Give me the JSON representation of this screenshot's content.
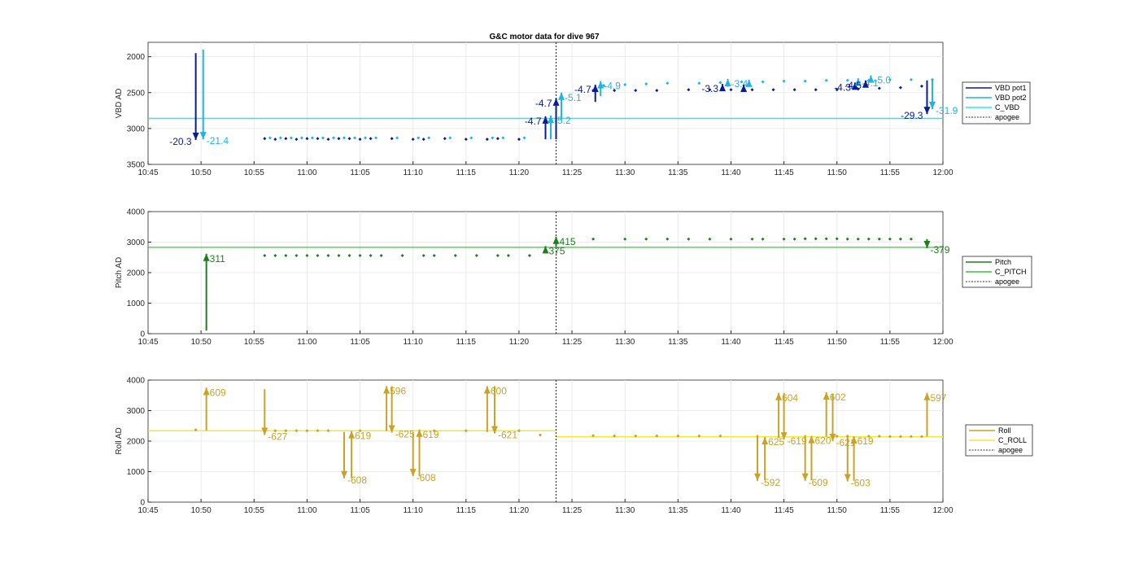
{
  "title": "G&C motor data for dive 967",
  "x_tick_labels": [
    "10:45",
    "10:50",
    "10:55",
    "11:00",
    "11:05",
    "11:10",
    "11:15",
    "11:20",
    "11:25",
    "11:30",
    "11:35",
    "11:40",
    "11:45",
    "11:50",
    "11:55",
    "12:00"
  ],
  "chart_data": [
    {
      "type": "scatter",
      "ylabel": "VBD AD",
      "ylim": [
        3500,
        1800
      ],
      "y_reversed": true,
      "yticks": [
        2000,
        2500,
        3000,
        3500
      ],
      "grid": true,
      "legend_position": "right",
      "legend": [
        "VBD pot1",
        "VBD pot2",
        "C_VBD",
        "apogee"
      ],
      "colors": {
        "pot1": "#0a1a9c",
        "pot2": "#1fb4e6",
        "c_vbd": "#2fe6e6",
        "apogee": "#333333"
      },
      "c_vbd_value": 2860,
      "apogee_time": "11:23.5",
      "pot1_points": [
        [
          56,
          3140
        ],
        [
          57,
          3150
        ],
        [
          58,
          3140
        ],
        [
          59,
          3150
        ],
        [
          60,
          3140
        ],
        [
          61,
          3140
        ],
        [
          62,
          3150
        ],
        [
          63,
          3140
        ],
        [
          64,
          3140
        ],
        [
          65,
          3150
        ],
        [
          66,
          3140
        ],
        [
          68,
          3140
        ],
        [
          70,
          3150
        ],
        [
          71,
          3150
        ],
        [
          73,
          3140
        ],
        [
          75,
          3150
        ],
        [
          77,
          3150
        ],
        [
          78,
          3140
        ],
        [
          80,
          3150
        ],
        [
          87,
          2470
        ],
        [
          89,
          2470
        ],
        [
          91,
          2470
        ],
        [
          93,
          2470
        ],
        [
          96,
          2460
        ],
        [
          98,
          2460
        ],
        [
          100,
          2460
        ],
        [
          102,
          2460
        ],
        [
          104,
          2460
        ],
        [
          106,
          2460
        ],
        [
          108,
          2460
        ],
        [
          110,
          2460
        ],
        [
          112,
          2450
        ],
        [
          114,
          2440
        ],
        [
          116,
          2430
        ],
        [
          118,
          2410
        ]
      ],
      "pot2_points": [
        [
          56.5,
          3130
        ],
        [
          57.5,
          3130
        ],
        [
          58.5,
          3130
        ],
        [
          59.5,
          3130
        ],
        [
          60.5,
          3130
        ],
        [
          61.5,
          3130
        ],
        [
          62.5,
          3130
        ],
        [
          63.5,
          3130
        ],
        [
          64.5,
          3130
        ],
        [
          65.5,
          3130
        ],
        [
          66.5,
          3130
        ],
        [
          68.5,
          3130
        ],
        [
          70.5,
          3130
        ],
        [
          71.5,
          3130
        ],
        [
          73.5,
          3130
        ],
        [
          75.5,
          3130
        ],
        [
          77.5,
          3130
        ],
        [
          78.5,
          3130
        ],
        [
          80.5,
          3130
        ],
        [
          88,
          2400
        ],
        [
          90,
          2390
        ],
        [
          92,
          2380
        ],
        [
          94,
          2370
        ],
        [
          97,
          2370
        ],
        [
          99,
          2360
        ],
        [
          101,
          2350
        ],
        [
          103,
          2350
        ],
        [
          105,
          2340
        ],
        [
          107,
          2340
        ],
        [
          109,
          2330
        ],
        [
          111,
          2330
        ],
        [
          113,
          2330
        ],
        [
          115,
          2320
        ],
        [
          117,
          2320
        ],
        [
          119,
          2320
        ]
      ],
      "arrows": [
        {
          "series": "pot1",
          "t": 49.5,
          "y0": 1950,
          "y1": 3160,
          "label": "-20.3",
          "label_side": "left"
        },
        {
          "series": "pot2",
          "t": 50.2,
          "y0": 1900,
          "y1": 3150,
          "label": "-21.4",
          "label_side": "right"
        },
        {
          "series": "pot1",
          "t": 82.5,
          "y0": 3150,
          "y1": 2830,
          "label": "-4.7",
          "label_side": "left"
        },
        {
          "series": "pot2",
          "t": 83.0,
          "y0": 3150,
          "y1": 2820,
          "label": "-5.2",
          "label_side": "right"
        },
        {
          "series": "pot1",
          "t": 83.5,
          "y0": 3150,
          "y1": 2580,
          "label": "-4.7",
          "label_side": "left"
        },
        {
          "series": "pot2",
          "t": 84.0,
          "y0": 2880,
          "y1": 2500,
          "label": "-5.1",
          "label_side": "right"
        },
        {
          "series": "pot1",
          "t": 87.2,
          "y0": 2630,
          "y1": 2390,
          "label": "-4.7",
          "label_side": "left"
        },
        {
          "series": "pot2",
          "t": 87.7,
          "y0": 2550,
          "y1": 2340,
          "label": "-4.9",
          "label_side": "right"
        },
        {
          "series": "pot1",
          "t": 99.2,
          "y0": 2460,
          "y1": 2380,
          "label": "-3.3",
          "label_side": "left"
        },
        {
          "series": "pot2",
          "t": 99.7,
          "y0": 2420,
          "y1": 2310,
          "label": "-3.4",
          "label_side": "right"
        },
        {
          "series": "pot1",
          "t": 101.2,
          "y0": 2460,
          "y1": 2390,
          "label": "",
          "label_side": "left"
        },
        {
          "series": "pot2",
          "t": 101.7,
          "y0": 2410,
          "y1": 2320,
          "label": "",
          "label_side": "right"
        },
        {
          "series": "pot1",
          "t": 111.7,
          "y0": 2440,
          "y1": 2360,
          "label": "-4.3",
          "label_side": "left"
        },
        {
          "series": "pot2",
          "t": 112.0,
          "y0": 2380,
          "y1": 2300,
          "label": "-4.1",
          "label_side": "right"
        },
        {
          "series": "pot1",
          "t": 112.7,
          "y0": 2420,
          "y1": 2330,
          "label": "-4.5",
          "label_side": "left"
        },
        {
          "series": "pot2",
          "t": 113.2,
          "y0": 2360,
          "y1": 2260,
          "label": "-5.0",
          "label_side": "right"
        },
        {
          "series": "pot1",
          "t": 118.5,
          "y0": 2330,
          "y1": 2800,
          "label": "-29.3",
          "label_side": "left"
        },
        {
          "series": "pot2",
          "t": 119.0,
          "y0": 2320,
          "y1": 2730,
          "label": "-31.9",
          "label_side": "right"
        }
      ]
    },
    {
      "type": "scatter",
      "ylabel": "Pitch AD",
      "ylim": [
        0,
        4000
      ],
      "yticks": [
        0,
        1000,
        2000,
        3000,
        4000
      ],
      "grid": true,
      "legend_position": "right",
      "legend": [
        "Pitch",
        "C_PITCH",
        "apogee"
      ],
      "colors": {
        "pitch": "#1e7e1e",
        "c_pitch": "#35cc35",
        "apogee": "#333333"
      },
      "c_pitch_value": 2830,
      "apogee_time": "11:23.5",
      "points": [
        [
          56,
          2560
        ],
        [
          57,
          2560
        ],
        [
          58,
          2560
        ],
        [
          59,
          2560
        ],
        [
          60,
          2560
        ],
        [
          61,
          2560
        ],
        [
          62,
          2560
        ],
        [
          63,
          2560
        ],
        [
          64,
          2560
        ],
        [
          65,
          2560
        ],
        [
          66,
          2560
        ],
        [
          67,
          2560
        ],
        [
          69,
          2560
        ],
        [
          71,
          2560
        ],
        [
          72,
          2560
        ],
        [
          74,
          2560
        ],
        [
          76,
          2560
        ],
        [
          78,
          2560
        ],
        [
          79,
          2560
        ],
        [
          81,
          2560
        ],
        [
          87,
          3100
        ],
        [
          90,
          3100
        ],
        [
          92,
          3100
        ],
        [
          94,
          3100
        ],
        [
          96,
          3100
        ],
        [
          98,
          3100
        ],
        [
          100,
          3100
        ],
        [
          102,
          3100
        ],
        [
          103,
          3100
        ],
        [
          105,
          3100
        ],
        [
          106,
          3100
        ],
        [
          107,
          3110
        ],
        [
          108,
          3110
        ],
        [
          109,
          3110
        ],
        [
          110,
          3110
        ],
        [
          111,
          3100
        ],
        [
          112,
          3100
        ],
        [
          113,
          3100
        ],
        [
          114,
          3100
        ],
        [
          115,
          3100
        ],
        [
          116,
          3100
        ],
        [
          117,
          3100
        ]
      ],
      "arrows": [
        {
          "t": 50.5,
          "y0": 100,
          "y1": 2620,
          "label": "311",
          "label_side": "right"
        },
        {
          "t": 82.5,
          "y0": 2630,
          "y1": 2870,
          "label": "375",
          "label_side": "right"
        },
        {
          "t": 83.5,
          "y0": 2850,
          "y1": 3180,
          "label": "415",
          "label_side": "right"
        },
        {
          "t": 118.5,
          "y0": 3100,
          "y1": 2800,
          "label": "-379",
          "label_side": "right"
        }
      ]
    },
    {
      "type": "scatter",
      "ylabel": "Roll AD",
      "ylim": [
        0,
        4000
      ],
      "yticks": [
        0,
        1000,
        2000,
        3000,
        4000
      ],
      "grid": true,
      "legend_position": "right",
      "legend": [
        "Roll",
        "C_ROLL",
        "apogee"
      ],
      "colors": {
        "roll": "#c9a227",
        "c_roll": "#f2e83a",
        "apogee": "#333333"
      },
      "c_roll_segments": [
        {
          "t0": 45,
          "t1": 83.5,
          "y": 2340
        },
        {
          "t0": 83.5,
          "t1": 120,
          "y": 2140
        }
      ],
      "apogee_time": "11:23.5",
      "points": [
        [
          49.5,
          2370
        ],
        [
          57,
          2340
        ],
        [
          58,
          2340
        ],
        [
          59,
          2340
        ],
        [
          60,
          2340
        ],
        [
          61,
          2340
        ],
        [
          62,
          2340
        ],
        [
          65,
          2340
        ],
        [
          72,
          2340
        ],
        [
          75,
          2340
        ],
        [
          80,
          2340
        ],
        [
          82,
          2200
        ],
        [
          87,
          2180
        ],
        [
          89,
          2170
        ],
        [
          91,
          2170
        ],
        [
          93,
          2170
        ],
        [
          95,
          2170
        ],
        [
          97,
          2170
        ],
        [
          99,
          2170
        ],
        [
          110,
          2160
        ],
        [
          111,
          2160
        ],
        [
          113,
          2160
        ],
        [
          114,
          2160
        ],
        [
          115,
          2150
        ],
        [
          116,
          2150
        ],
        [
          117,
          2150
        ],
        [
          118,
          2150
        ]
      ],
      "arrows": [
        {
          "t": 50.5,
          "y0": 2350,
          "y1": 3750,
          "label": "609",
          "label_side": "right"
        },
        {
          "t": 56.0,
          "y0": 3700,
          "y1": 2200,
          "label": "-627",
          "label_side": "right"
        },
        {
          "t": 63.5,
          "y0": 2300,
          "y1": 780,
          "label": "-608",
          "label_side": "right"
        },
        {
          "t": 64.2,
          "y0": 800,
          "y1": 2330,
          "label": "619",
          "label_side": "right"
        },
        {
          "t": 67.5,
          "y0": 2330,
          "y1": 3800,
          "label": "596",
          "label_side": "right"
        },
        {
          "t": 68.0,
          "y0": 3800,
          "y1": 2280,
          "label": "-625",
          "label_side": "right"
        },
        {
          "t": 70.0,
          "y0": 2300,
          "y1": 850,
          "label": "-608",
          "label_side": "right"
        },
        {
          "t": 70.6,
          "y0": 850,
          "y1": 2380,
          "label": "619",
          "label_side": "right"
        },
        {
          "t": 77.0,
          "y0": 2300,
          "y1": 3800,
          "label": "600",
          "label_side": "right"
        },
        {
          "t": 77.7,
          "y0": 3800,
          "y1": 2250,
          "label": "-621",
          "label_side": "right"
        },
        {
          "t": 102.5,
          "y0": 2200,
          "y1": 700,
          "label": "-592",
          "label_side": "right"
        },
        {
          "t": 103.2,
          "y0": 720,
          "y1": 2130,
          "label": "625",
          "label_side": "right"
        },
        {
          "t": 104.5,
          "y0": 2100,
          "y1": 3580,
          "label": "604",
          "label_side": "right"
        },
        {
          "t": 105.0,
          "y0": 3580,
          "y1": 2050,
          "label": "-619",
          "label_side": "right"
        },
        {
          "t": 107.0,
          "y0": 2200,
          "y1": 700,
          "label": "-609",
          "label_side": "right"
        },
        {
          "t": 107.6,
          "y0": 720,
          "y1": 2170,
          "label": "620",
          "label_side": "right"
        },
        {
          "t": 109.0,
          "y0": 2150,
          "y1": 3600,
          "label": "602",
          "label_side": "right"
        },
        {
          "t": 109.6,
          "y0": 3550,
          "y1": 2000,
          "label": "-621",
          "label_side": "right"
        },
        {
          "t": 111.0,
          "y0": 2200,
          "y1": 680,
          "label": "-603",
          "label_side": "right"
        },
        {
          "t": 111.6,
          "y0": 700,
          "y1": 2160,
          "label": "619",
          "label_side": "right"
        },
        {
          "t": 118.5,
          "y0": 2150,
          "y1": 3580,
          "label": "597",
          "label_side": "right"
        }
      ]
    }
  ]
}
